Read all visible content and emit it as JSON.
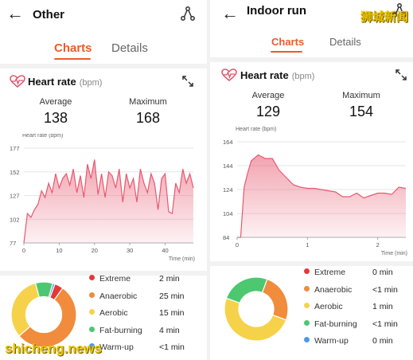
{
  "left": {
    "title": "Other",
    "tabs": [
      {
        "label": "Charts",
        "active": true
      },
      {
        "label": "Details",
        "active": false
      }
    ],
    "hr_title": "Heart rate",
    "hr_unit": "(bpm)",
    "average_label": "Average",
    "average_value": "138",
    "maximum_label": "Maximum",
    "maximum_value": "168",
    "legend": [
      {
        "label": "Extreme",
        "value": "2 min",
        "color": "#e53935"
      },
      {
        "label": "Anaerobic",
        "value": "25 min",
        "color": "#f08c3c"
      },
      {
        "label": "Aerobic",
        "value": "15 min",
        "color": "#f6d24a"
      },
      {
        "label": "Fat-burning",
        "value": "4 min",
        "color": "#4cc870"
      },
      {
        "label": "Warm-up",
        "value": "<1 min",
        "color": "#4a9ae8"
      }
    ]
  },
  "right": {
    "title": "Indoor run",
    "tabs": [
      {
        "label": "Charts",
        "active": true
      },
      {
        "label": "Details",
        "active": false
      }
    ],
    "hr_title": "Heart rate",
    "hr_unit": "(bpm)",
    "average_label": "Average",
    "average_value": "129",
    "maximum_label": "Maximum",
    "maximum_value": "154",
    "legend": [
      {
        "label": "Extreme",
        "value": "0 min",
        "color": "#e53935"
      },
      {
        "label": "Anaerobic",
        "value": "<1 min",
        "color": "#f08c3c"
      },
      {
        "label": "Aerobic",
        "value": "1 min",
        "color": "#f6d24a"
      },
      {
        "label": "Fat-burning",
        "value": "<1 min",
        "color": "#4cc870"
      },
      {
        "label": "Warm-up",
        "value": "0 min",
        "color": "#4a9ae8"
      }
    ]
  },
  "watermarks": {
    "cn": "狮城新闻",
    "en": "shicheng.news"
  },
  "chart_data": [
    {
      "type": "area",
      "ylabel": "Heart rate (bpm)",
      "xlabel": "Time (min)",
      "yticks": [
        77,
        102,
        127,
        152,
        177
      ],
      "xticks": [
        0,
        10,
        20,
        30,
        40
      ],
      "ylim": [
        77,
        177
      ],
      "xlim": [
        0,
        48
      ],
      "color": "#e8586f",
      "x": [
        0,
        1,
        2,
        3,
        4,
        5,
        6,
        7,
        8,
        9,
        10,
        11,
        12,
        13,
        14,
        15,
        16,
        17,
        18,
        19,
        20,
        21,
        22,
        23,
        24,
        25,
        26,
        27,
        28,
        29,
        30,
        31,
        32,
        33,
        34,
        35,
        36,
        37,
        38,
        39,
        40,
        41,
        42,
        43,
        44,
        45,
        46,
        47,
        48
      ],
      "y": [
        77,
        108,
        104,
        112,
        118,
        132,
        125,
        140,
        130,
        150,
        135,
        145,
        150,
        138,
        155,
        130,
        148,
        125,
        160,
        145,
        165,
        128,
        150,
        125,
        152,
        148,
        135,
        155,
        120,
        150,
        135,
        145,
        120,
        155,
        140,
        130,
        150,
        140,
        112,
        145,
        150,
        110,
        108,
        140,
        130,
        155,
        140,
        150,
        135
      ]
    },
    {
      "type": "area",
      "ylabel": "Heart rate (bpm)",
      "xlabel": "Time (min)",
      "yticks": [
        84,
        104,
        124,
        144,
        164
      ],
      "xticks": [
        0,
        1,
        2
      ],
      "ylim": [
        84,
        164
      ],
      "xlim": [
        0,
        2.4
      ],
      "color": "#e8586f",
      "x": [
        0,
        0.05,
        0.1,
        0.15,
        0.2,
        0.3,
        0.4,
        0.5,
        0.6,
        0.7,
        0.8,
        0.9,
        1.0,
        1.1,
        1.2,
        1.3,
        1.4,
        1.5,
        1.6,
        1.7,
        1.8,
        1.9,
        2.0,
        2.1,
        2.2,
        2.3,
        2.4
      ],
      "y": [
        84,
        84,
        126,
        138,
        148,
        153,
        150,
        150,
        140,
        134,
        128,
        126,
        125,
        125,
        124,
        123,
        122,
        118,
        118,
        121,
        117,
        119,
        121,
        121,
        120,
        126,
        125
      ]
    }
  ],
  "zones": [
    {
      "panel": "left",
      "values": [
        2,
        25,
        15,
        4,
        0.5
      ]
    },
    {
      "panel": "right",
      "values": [
        0,
        0.5,
        1,
        0.5,
        0
      ]
    }
  ]
}
